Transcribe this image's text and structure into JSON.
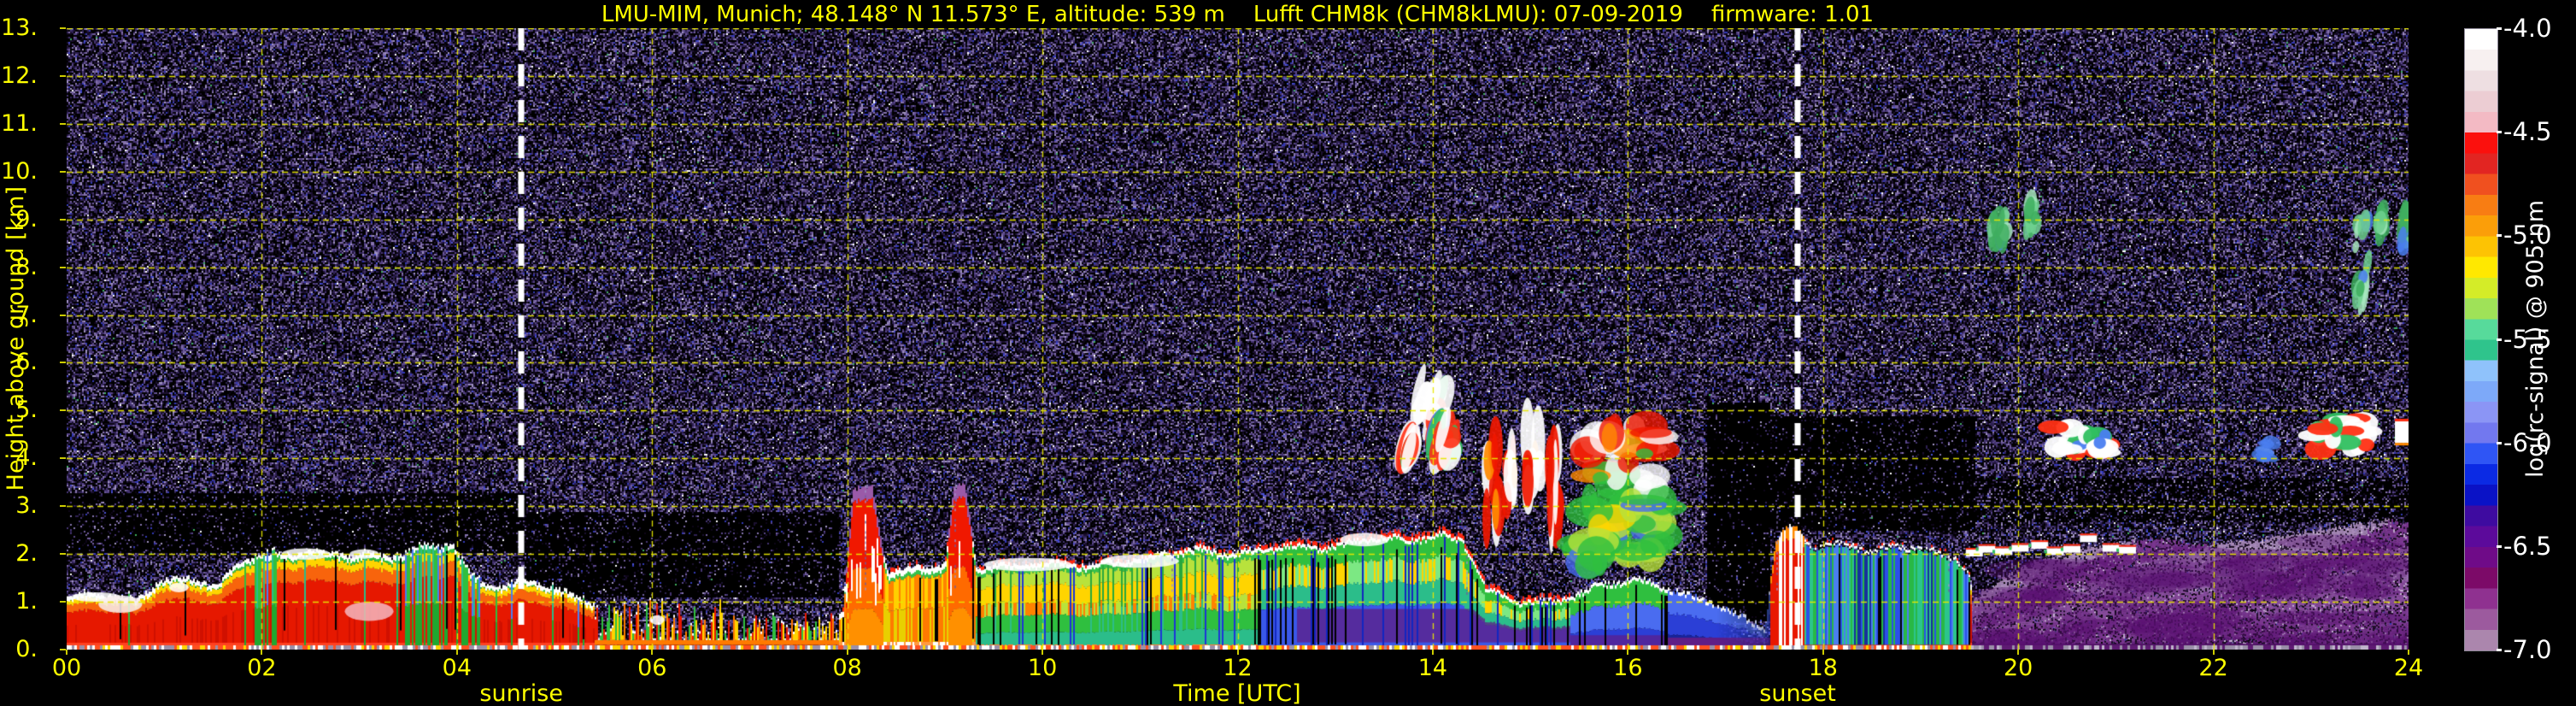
{
  "chart_data": {
    "type": "heatmap",
    "title": "LMU-MIM, Munich; 48.148° N 11.573° E, altitude: 539 m    Lufft CHM8k (CHM8kLMU): 07-09-2019    firmware: 1.01",
    "xlabel": "Time [UTC]",
    "ylabel": "Height above ground [km]",
    "xlim": [
      0,
      24
    ],
    "ylim": [
      0,
      13
    ],
    "xticks": [
      "00",
      "02",
      "04",
      "06",
      "08",
      "10",
      "12",
      "14",
      "16",
      "18",
      "20",
      "22",
      "24"
    ],
    "yticks": [
      "13.",
      "12.",
      "11.",
      "10.",
      "9.",
      "8.",
      "7.",
      "6.",
      "5.",
      "4.",
      "3.",
      "2.",
      "1.",
      "0."
    ],
    "grid": {
      "color": "#e8e800",
      "style": "dashed",
      "x_step_hours": 2,
      "y_step_km": 1
    },
    "sun": {
      "sunrise_label": "sunrise",
      "sunrise_time_utc": 4.66,
      "sunset_label": "sunset",
      "sunset_time_utc": 17.74,
      "line_color": "#ffffff",
      "line_style": "dashed"
    },
    "colorbar": {
      "label": "log(rc-signal) @ 905 nm",
      "ticks": [
        "-4.0",
        "-4.5",
        "-5.0",
        "-5.5",
        "-6.0",
        "-6.5",
        "-7.0"
      ],
      "range": [
        -4.0,
        -7.0
      ],
      "colors": [
        "#ffffff",
        "#f7f0f0",
        "#eedfe2",
        "#eccdd3",
        "#f3bac4",
        "#fb100d",
        "#e22522",
        "#f0501f",
        "#f87d13",
        "#fb9e09",
        "#fdc303",
        "#ffe800",
        "#d4ec28",
        "#9fe258",
        "#57da9b",
        "#2fc48c",
        "#8fc2fb",
        "#7da9f9",
        "#8b95f5",
        "#7278ef",
        "#2f55f5",
        "#0b2ae4",
        "#0a12c6",
        "#3e0ba0",
        "#5c0a9b",
        "#6f0b88",
        "#7c0a68",
        "#8f3190",
        "#9c5a9e",
        "#ab86ad"
      ]
    },
    "noise": {
      "palette": [
        "#0d0618",
        "#1b1030",
        "#2e2152",
        "#43336f",
        "#584689",
        "#6f5c9b",
        "#8674ae",
        "#a195c2",
        "#3238b6",
        "#4a50d2",
        "#ffffff",
        "#3fae5f"
      ],
      "weights": [
        0.16,
        0.16,
        0.14,
        0.13,
        0.11,
        0.1,
        0.08,
        0.05,
        0.04,
        0.02,
        0.006,
        0.004
      ],
      "base_density": 0.62,
      "sparse_zones": [
        [
          0,
          4.7,
          2.05,
          3.3,
          0.22
        ],
        [
          4.7,
          7.9,
          1.1,
          2.9,
          0.22
        ],
        [
          16.8,
          17.45,
          0.6,
          5.2,
          0.1
        ],
        [
          17.45,
          19.55,
          2.5,
          4.9,
          0.18
        ],
        [
          19.55,
          24,
          2.7,
          3.6,
          0.5
        ]
      ]
    },
    "boundary_layer": {
      "top_km_keyframes": [
        [
          0,
          1.12
        ],
        [
          0.35,
          1.18
        ],
        [
          0.7,
          1.05
        ],
        [
          0.95,
          1.45
        ],
        [
          1.25,
          1.5
        ],
        [
          1.55,
          1.35
        ],
        [
          1.8,
          1.9
        ],
        [
          2.1,
          2.0
        ],
        [
          2.5,
          2.05
        ],
        [
          2.9,
          2.0
        ],
        [
          3.3,
          1.95
        ],
        [
          3.6,
          2.1
        ],
        [
          3.95,
          2.2
        ],
        [
          4.15,
          1.5
        ],
        [
          4.4,
          1.3
        ],
        [
          4.66,
          1.45
        ],
        [
          4.95,
          1.35
        ],
        [
          5.2,
          1.1
        ],
        [
          5.45,
          0.95
        ],
        [
          5.9,
          1.05
        ],
        [
          6.3,
          0.95
        ],
        [
          6.7,
          1.0
        ],
        [
          7.1,
          0.85
        ],
        [
          7.5,
          0.72
        ],
        [
          7.95,
          0.85
        ],
        [
          8.05,
          3.3
        ],
        [
          8.25,
          3.42
        ],
        [
          8.4,
          1.65
        ],
        [
          8.7,
          1.72
        ],
        [
          9.0,
          1.8
        ],
        [
          9.08,
          3.35
        ],
        [
          9.2,
          3.45
        ],
        [
          9.32,
          1.72
        ],
        [
          9.7,
          1.78
        ],
        [
          10.1,
          1.82
        ],
        [
          10.5,
          1.78
        ],
        [
          10.9,
          1.88
        ],
        [
          11.3,
          2.05
        ],
        [
          11.6,
          2.12
        ],
        [
          11.9,
          2.02
        ],
        [
          12.2,
          2.1
        ],
        [
          12.5,
          2.2
        ],
        [
          12.8,
          2.15
        ],
        [
          13.1,
          2.22
        ],
        [
          13.45,
          2.38
        ],
        [
          13.75,
          2.32
        ],
        [
          14.05,
          2.42
        ],
        [
          14.3,
          2.3
        ],
        [
          14.55,
          1.25
        ],
        [
          14.85,
          1.05
        ],
        [
          15.15,
          1.0
        ],
        [
          15.45,
          1.15
        ],
        [
          15.75,
          1.4
        ],
        [
          16.05,
          1.5
        ],
        [
          16.35,
          1.35
        ],
        [
          16.6,
          1.15
        ],
        [
          16.9,
          1.0
        ],
        [
          17.15,
          0.7
        ],
        [
          17.4,
          0.5
        ],
        [
          17.5,
          2.2
        ],
        [
          17.62,
          2.55
        ],
        [
          17.75,
          2.5
        ],
        [
          17.9,
          2.15
        ],
        [
          18.2,
          2.25
        ],
        [
          18.5,
          2.1
        ],
        [
          18.8,
          2.2
        ],
        [
          19.1,
          2.08
        ],
        [
          19.35,
          1.95
        ],
        [
          19.5,
          1.6
        ],
        [
          19.55,
          0.0
        ]
      ],
      "styles": [
        {
          "t0": 0,
          "t1": 4.65,
          "kind": "red"
        },
        {
          "t0": 4.65,
          "t1": 5.4,
          "kind": "red"
        },
        {
          "t0": 5.4,
          "t1": 7.9,
          "kind": "spiky"
        },
        {
          "t0": 7.9,
          "t1": 9.3,
          "kind": "plume"
        },
        {
          "t0": 9.3,
          "t1": 12.2,
          "kind": "mixed"
        },
        {
          "t0": 12.2,
          "t1": 15.4,
          "kind": "mixed2"
        },
        {
          "t0": 15.4,
          "t1": 16.4,
          "kind": "bluegreen"
        },
        {
          "t0": 16.4,
          "t1": 17.45,
          "kind": "bluehaze"
        },
        {
          "t0": 17.45,
          "t1": 17.8,
          "kind": "redcol"
        },
        {
          "t0": 17.8,
          "t1": 19.5,
          "kind": "greenblue"
        }
      ],
      "plume_ranges": [
        [
          7.98,
          8.36
        ],
        [
          9.02,
          9.27
        ]
      ],
      "teal_column_ranges": [
        [
          1.72,
          2.18
        ],
        [
          3.5,
          4.3
        ]
      ],
      "smudges": [
        [
          0.3,
          1.1,
          0.5,
          0.05,
          "#ffffff"
        ],
        [
          0.55,
          0.95,
          0.45,
          0.09,
          "#f8eeee"
        ],
        [
          1.15,
          1.3,
          0.2,
          0.05,
          "#ffffff"
        ],
        [
          3.1,
          0.8,
          0.5,
          0.1,
          "#f4b8c0"
        ],
        [
          2.45,
          2.0,
          0.5,
          0.06,
          "#ffffff"
        ],
        [
          3.05,
          2.0,
          0.3,
          0.05,
          "#ffffff"
        ],
        [
          6.05,
          0.62,
          0.15,
          0.05,
          "#ffffff"
        ],
        [
          9.85,
          1.78,
          0.9,
          0.07,
          "#ffffff"
        ],
        [
          11.0,
          1.85,
          0.8,
          0.07,
          "#ffffff"
        ],
        [
          13.3,
          2.3,
          0.5,
          0.07,
          "#ffffff"
        ]
      ]
    },
    "evening_haze": {
      "t_start": 19.45,
      "top_km_keyframes": [
        [
          19.45,
          0.9
        ],
        [
          19.8,
          1.45
        ],
        [
          20.1,
          1.75
        ],
        [
          20.5,
          2.1
        ],
        [
          20.9,
          2.2
        ],
        [
          21.4,
          2.3
        ],
        [
          21.9,
          2.2
        ],
        [
          22.4,
          2.25
        ],
        [
          22.9,
          2.45
        ],
        [
          23.4,
          2.6
        ],
        [
          23.8,
          2.7
        ],
        [
          24,
          2.6
        ]
      ],
      "colors": {
        "top": "#a98bb9",
        "mid": "#9a6cae",
        "deep": "#8a4d9e",
        "low": "#7b3790",
        "bottom": "#641f7a",
        "blob": "#5a1070",
        "speck_light": "#cab6d6"
      }
    },
    "clouds": [
      {
        "t": 13.97,
        "k": 5.05,
        "dt": 0.3,
        "dk": 0.85,
        "kind": "streak"
      },
      {
        "t": 14.12,
        "k": 4.35,
        "dt": 0.2,
        "dk": 0.55,
        "kind": "streak"
      },
      {
        "t": 13.75,
        "k": 4.25,
        "dt": 0.1,
        "dk": 0.25,
        "kind": "streak"
      },
      {
        "t": 14.62,
        "k": 3.5,
        "dt": 0.14,
        "dk": 1.6,
        "kind": "cols"
      },
      {
        "t": 14.8,
        "k": 3.6,
        "dt": 0.1,
        "dk": 1.2,
        "kind": "cols"
      },
      {
        "t": 15.03,
        "k": 3.7,
        "dt": 0.14,
        "dk": 1.6,
        "kind": "cols"
      },
      {
        "t": 15.24,
        "k": 3.35,
        "dt": 0.12,
        "dk": 1.9,
        "kind": "cols"
      },
      {
        "t": 15.95,
        "k": 3.2,
        "dt": 0.85,
        "dk": 3.0,
        "kind": "mass"
      },
      {
        "t": 20.52,
        "k": 4.45,
        "dt": 0.33,
        "dk": 0.55,
        "kind": "rw"
      },
      {
        "t": 20.85,
        "k": 4.28,
        "dt": 0.12,
        "dk": 0.4,
        "kind": "rw"
      },
      {
        "t": 22.55,
        "k": 4.2,
        "dt": 0.12,
        "dk": 0.35,
        "kind": "bluewisp"
      },
      {
        "t": 23.3,
        "k": 4.5,
        "dt": 0.6,
        "dk": 0.7,
        "kind": "rwbig"
      },
      {
        "t": 23.94,
        "k": 4.55,
        "dt": 0.16,
        "dk": 0.45,
        "kind": "wblock"
      }
    ],
    "cirrus": [
      {
        "t": 19.8,
        "k": 8.85,
        "dt": 0.15,
        "dk": 0.85
      },
      {
        "t": 20.14,
        "k": 9.1,
        "dt": 0.08,
        "dk": 0.45
      },
      {
        "t": 23.52,
        "k": 8.2,
        "dt": 0.13,
        "dk": 1.8
      },
      {
        "t": 23.73,
        "k": 8.95,
        "dt": 0.07,
        "dk": 0.5
      },
      {
        "t": 23.96,
        "k": 8.75,
        "dt": 0.07,
        "dk": 0.9
      }
    ],
    "cloud_puffs_2km": [
      [
        19.55,
        2.02
      ],
      [
        19.68,
        2.1
      ],
      [
        19.85,
        2.05
      ],
      [
        20.02,
        2.12
      ],
      [
        20.22,
        2.18
      ],
      [
        20.38,
        2.05
      ],
      [
        20.55,
        2.1
      ],
      [
        20.72,
        2.32
      ],
      [
        20.95,
        2.12
      ],
      [
        21.12,
        2.08
      ]
    ],
    "spires": [
      [
        8.18,
        4.3
      ],
      [
        9.1,
        4.45
      ],
      [
        11.32,
        2.55
      ],
      [
        14.34,
        5.6
      ],
      [
        14.86,
        5.3
      ],
      [
        16.32,
        5.1
      ],
      [
        16.55,
        4.6
      ],
      [
        16.75,
        4.2
      ],
      [
        17.52,
        2.9
      ],
      [
        19.28,
        2.55
      ]
    ]
  }
}
